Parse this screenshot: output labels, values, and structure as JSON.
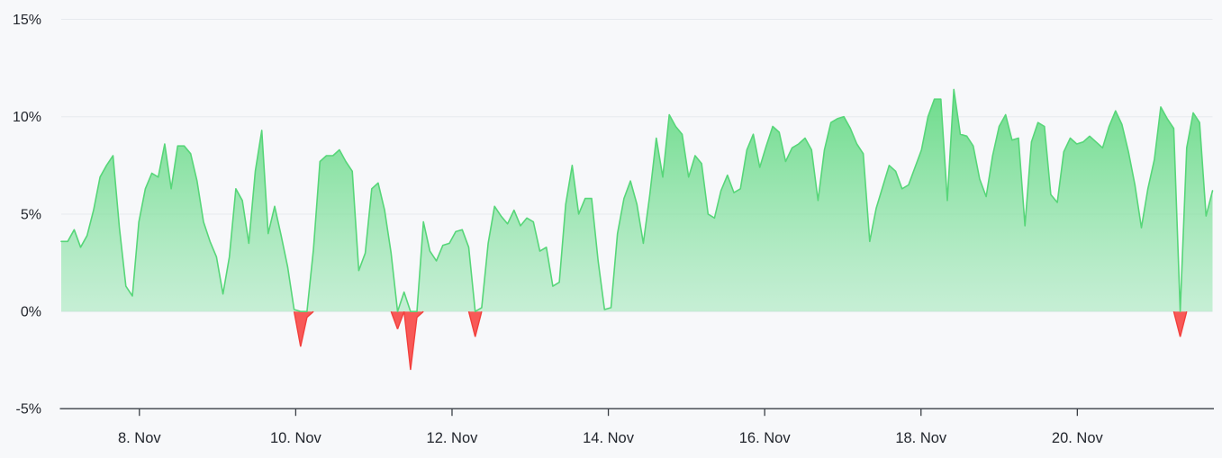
{
  "page": {
    "background_color": "#f7f8fa"
  },
  "chart_data": {
    "type": "area",
    "title": "",
    "unit": "%",
    "legend": "none",
    "grid": "horizontal",
    "x_axis": {
      "start_date": "7. Nov",
      "range_days": [
        0,
        14.73
      ],
      "tick_labels": [
        "8. Nov",
        "10. Nov",
        "12. Nov",
        "14. Nov",
        "16. Nov",
        "18. Nov",
        "20. Nov"
      ],
      "tick_day_offsets": [
        1,
        3,
        5,
        7,
        9,
        11,
        13
      ]
    },
    "y_axis": {
      "min": -5,
      "max": 15,
      "tick_values": [
        -5,
        0,
        5,
        10,
        15
      ],
      "tick_labels": [
        "-5%",
        "0%",
        "5%",
        "10%",
        "15%"
      ]
    },
    "colors": {
      "positive_line": "#57d679",
      "positive_fill_top": "#52d675",
      "positive_fill_bottom": "#a5e8bc",
      "negative_fill": "#f8504e",
      "negative_line": "#f23f3c",
      "gridline": "#e7eaee",
      "axis_line": "#3a3f46",
      "label_color": "#22262d"
    },
    "series": [
      {
        "name": "series-1",
        "start_day_offset": 0,
        "interval_hours": 2,
        "values": [
          3.6,
          3.6,
          4.2,
          3.3,
          3.9,
          5.2,
          6.9,
          7.5,
          8.0,
          4.3,
          1.3,
          0.8,
          4.6,
          6.3,
          7.1,
          6.9,
          8.6,
          6.3,
          8.5,
          8.5,
          8.1,
          6.7,
          4.6,
          3.6,
          2.8,
          0.9,
          2.8,
          6.3,
          5.7,
          3.5,
          7.2,
          9.3,
          4.0,
          5.4,
          3.9,
          2.3,
          0.1,
          -1.8,
          -0.3,
          3.2,
          7.7,
          8.0,
          8.0,
          8.3,
          7.7,
          7.2,
          2.1,
          3.0,
          6.3,
          6.6,
          5.2,
          3.0,
          -0.9,
          1.0,
          -3.0,
          -0.3,
          4.6,
          3.1,
          2.6,
          3.4,
          3.5,
          4.1,
          4.2,
          3.3,
          -1.3,
          0.2,
          3.5,
          5.4,
          4.9,
          4.5,
          5.2,
          4.4,
          4.8,
          4.6,
          3.1,
          3.3,
          1.3,
          1.5,
          5.5,
          7.5,
          5.0,
          5.8,
          5.8,
          2.6,
          0.1,
          0.2,
          4.0,
          5.8,
          6.7,
          5.5,
          3.5,
          6.0,
          8.9,
          6.9,
          10.1,
          9.5,
          9.1,
          6.9,
          8.0,
          7.6,
          5.0,
          4.8,
          6.2,
          7.0,
          6.1,
          6.3,
          8.3,
          9.1,
          7.4,
          8.5,
          9.5,
          9.2,
          7.7,
          8.4,
          8.6,
          8.9,
          8.3,
          5.7,
          8.3,
          9.7,
          9.9,
          10.0,
          9.4,
          8.6,
          8.1,
          3.6,
          5.3,
          6.4,
          7.5,
          7.2,
          6.3,
          6.5,
          7.4,
          8.3,
          10.0,
          10.9,
          10.9,
          5.7,
          11.4,
          9.1,
          9.0,
          8.5,
          6.8,
          5.9,
          8.0,
          9.5,
          10.1,
          8.8,
          8.9,
          4.4,
          8.7,
          9.7,
          9.5,
          6.0,
          5.6,
          8.2,
          8.9,
          8.6,
          8.7,
          9.0,
          8.7,
          8.4,
          9.5,
          10.3,
          9.6,
          8.2,
          6.5,
          4.3,
          6.3,
          7.8,
          10.5,
          9.9,
          9.4,
          -1.3,
          8.4,
          10.2,
          9.7,
          4.9,
          6.2
        ]
      }
    ]
  }
}
